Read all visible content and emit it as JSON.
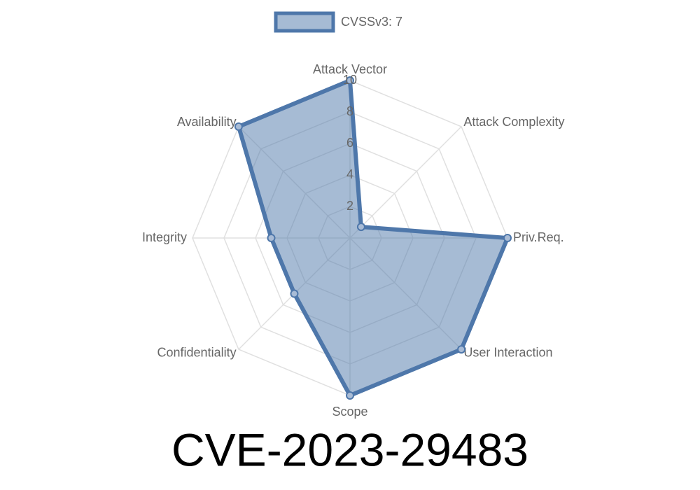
{
  "chart_data": {
    "type": "radar",
    "title": "CVE-2023-29483",
    "categories": [
      "Attack Vector",
      "Attack Complexity",
      "Priv.Req.",
      "User Interaction",
      "Scope",
      "Confidentiality",
      "Integrity",
      "Availability"
    ],
    "series": [
      {
        "name": "CVSSv3: 7",
        "color": "#4e77aa",
        "values": [
          10,
          1,
          10,
          10,
          10,
          5,
          5,
          10
        ]
      }
    ],
    "rlim": [
      0,
      10
    ],
    "rticks": [
      2,
      4,
      6,
      8,
      10
    ],
    "grid": true,
    "legend": "top"
  }
}
